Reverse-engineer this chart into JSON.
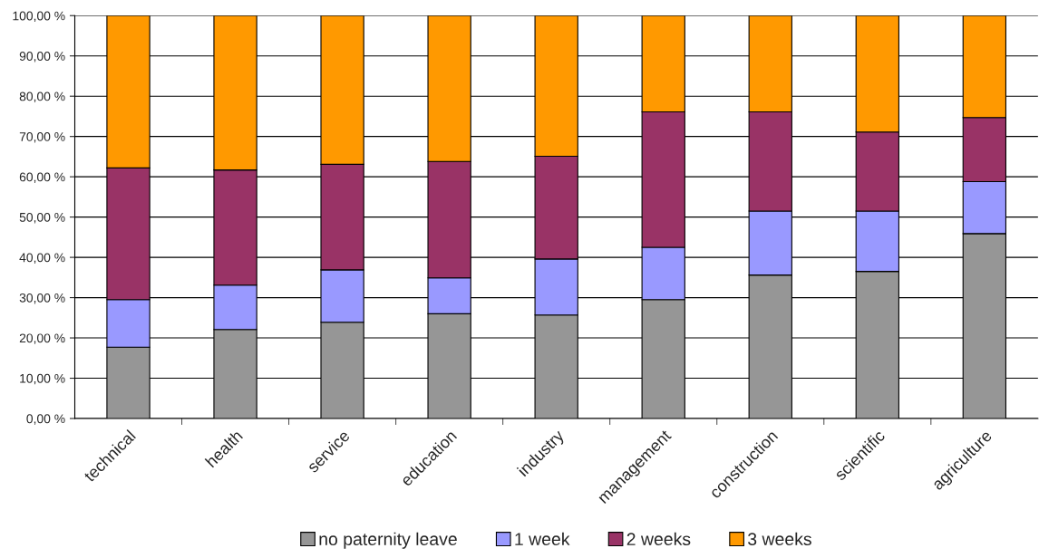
{
  "chart_data": {
    "type": "bar",
    "stacked": true,
    "categories": [
      "technical",
      "health",
      "service",
      "education",
      "industry",
      "management",
      "construction",
      "scientific",
      "agriculture"
    ],
    "series": [
      {
        "name": "no paternity leave",
        "color": "#969696",
        "values": [
          17.7,
          22.1,
          23.9,
          26.0,
          25.7,
          29.5,
          35.6,
          36.5,
          45.9
        ]
      },
      {
        "name": "1 week",
        "color": "#9999ff",
        "values": [
          11.8,
          11.0,
          13.0,
          8.9,
          13.9,
          13.0,
          15.9,
          15.0,
          12.9
        ]
      },
      {
        "name": "2 weeks",
        "color": "#993366",
        "values": [
          32.7,
          28.6,
          26.2,
          28.9,
          25.5,
          33.6,
          24.6,
          19.6,
          15.9
        ]
      },
      {
        "name": "3 weeks",
        "color": "#ff9900",
        "values": [
          37.8,
          38.3,
          36.9,
          36.2,
          34.9,
          23.9,
          23.9,
          28.9,
          25.3
        ]
      }
    ],
    "ylim": [
      0,
      100
    ],
    "yticks": [
      {
        "value": 0,
        "label": "0,00 %"
      },
      {
        "value": 10,
        "label": "10,00 %"
      },
      {
        "value": 20,
        "label": "20,00 %"
      },
      {
        "value": 30,
        "label": "30,00 %"
      },
      {
        "value": 40,
        "label": "40,00 %"
      },
      {
        "value": 50,
        "label": "50,00 %"
      },
      {
        "value": 60,
        "label": "60,00 %"
      },
      {
        "value": 70,
        "label": "70,00 %"
      },
      {
        "value": 80,
        "label": "80,00 %"
      },
      {
        "value": 90,
        "label": "90,00 %"
      },
      {
        "value": 100,
        "label": "100,00 %"
      }
    ],
    "grid": "y",
    "legend": "bottom"
  }
}
